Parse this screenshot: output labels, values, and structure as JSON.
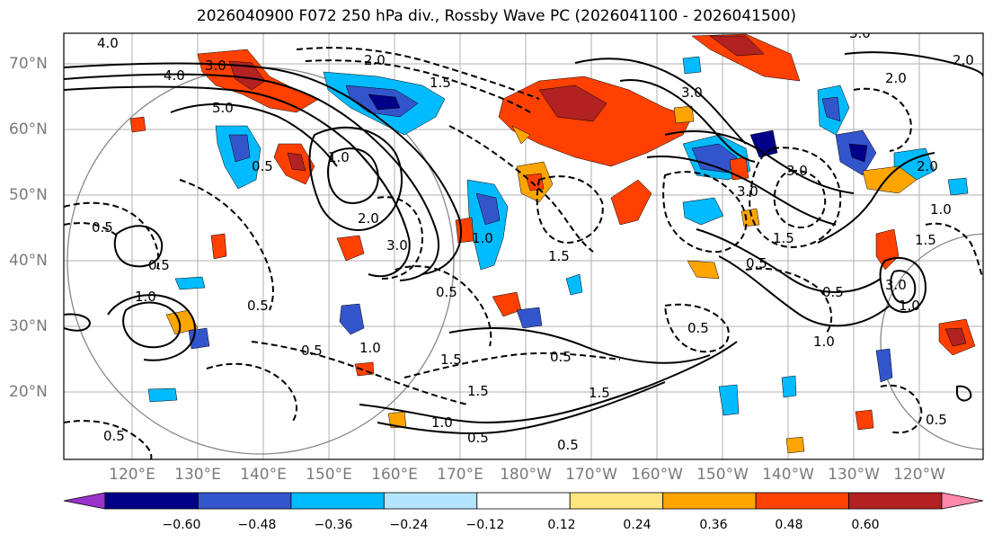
{
  "title": "2026040900 F072 250 hPa div., Rossby Wave PC (2026041100 - 2026041500)",
  "latitude_labels": [
    "70°N",
    "60°N",
    "50°N",
    "40°N",
    "30°N",
    "20°N"
  ],
  "longitude_labels": [
    "120°E",
    "130°E",
    "140°E",
    "150°E",
    "160°E",
    "170°E",
    "180°W",
    "170°W",
    "160°W",
    "150°W",
    "140°W",
    "130°W",
    "120°W"
  ],
  "colorbar": {
    "ticks": [
      "−0.60",
      "−0.48",
      "−0.36",
      "−0.24",
      "−0.12",
      "0.12",
      "0.24",
      "0.36",
      "0.48",
      "0.60"
    ],
    "colors": [
      "#9933cc",
      "#000088",
      "#3355cc",
      "#00bbff",
      "#b3e5ff",
      "#ffffff",
      "#ffe680",
      "#ffa500",
      "#ff4000",
      "#b22222",
      "#ff88aa"
    ]
  },
  "contour_labels": [
    "4.0",
    "4.0",
    "3.0",
    "5.0",
    "2.0",
    "1.5",
    "3.0",
    "3.0",
    "2.0",
    "3.0",
    "0.5",
    "1.0",
    "2.0",
    "0.5",
    "3.0",
    "1.0",
    "0.5",
    "0.5",
    "1.0",
    "0.5",
    "1.5",
    "1.5",
    "2.0",
    "1.0",
    "1.5",
    "0.5",
    "0.5",
    "1.0",
    "1.5",
    "0.5",
    "0.5",
    "1.0",
    "1.0",
    "3.0",
    "1.0",
    "0.5",
    "0.5",
    "0.5",
    "1.5",
    "2.0",
    "0.5",
    "3.0",
    "0.5",
    "1.5"
  ]
}
